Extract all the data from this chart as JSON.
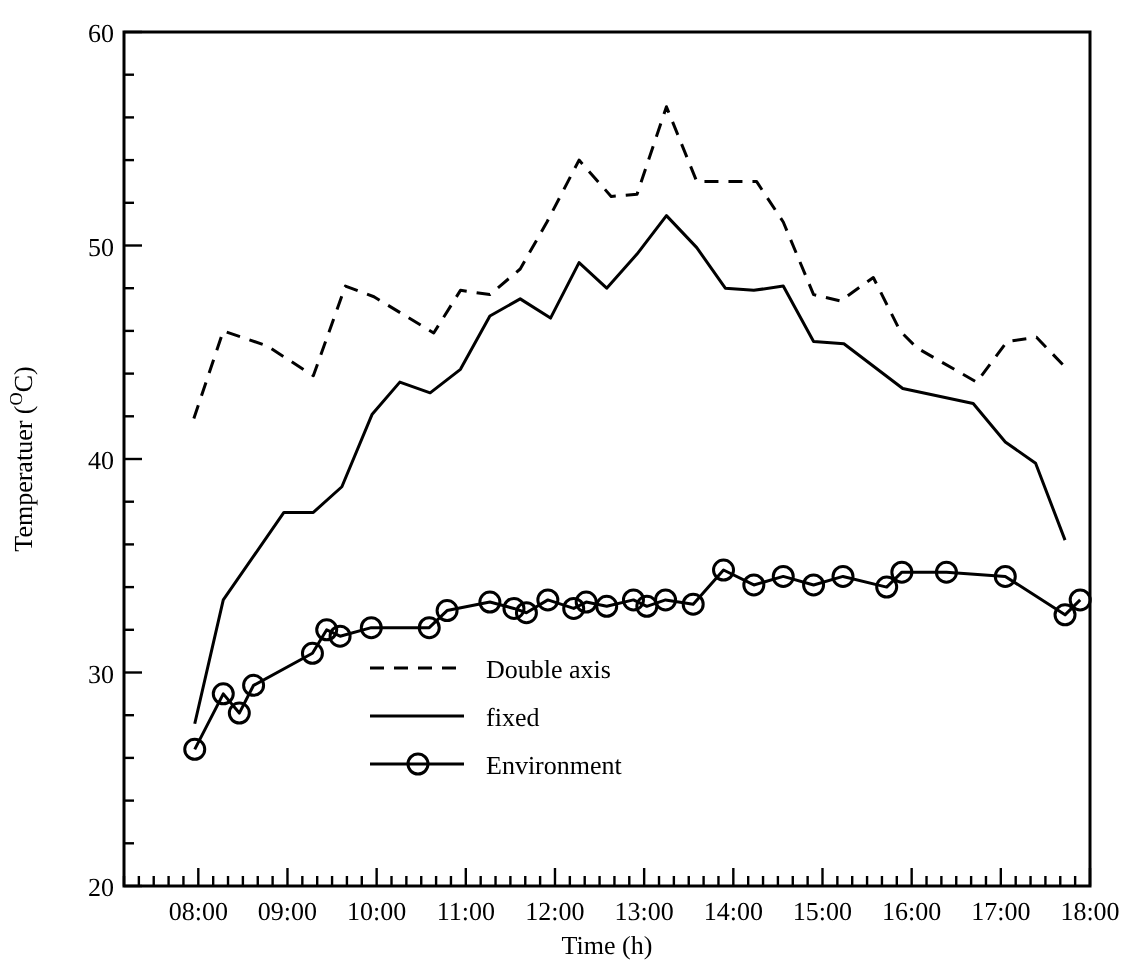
{
  "chart_data": {
    "type": "line",
    "xlabel": "Time (h)",
    "ylabel": "Temperatuer ($^{O}$C)",
    "xlim": [
      7.1667,
      18
    ],
    "ylim": [
      20,
      60
    ],
    "xticks": [
      {
        "value": 7.1667,
        "label": null
      },
      {
        "value": 7.3333,
        "label": null
      },
      {
        "value": 7.5,
        "label": null
      },
      {
        "value": 7.6667,
        "label": null
      },
      {
        "value": 7.8333,
        "label": null
      },
      {
        "value": 8,
        "label": "08:00"
      },
      {
        "value": 8.1667,
        "label": null
      },
      {
        "value": 8.3333,
        "label": null
      },
      {
        "value": 8.5,
        "label": null
      },
      {
        "value": 8.6667,
        "label": null
      },
      {
        "value": 8.8333,
        "label": null
      },
      {
        "value": 9,
        "label": "09:00"
      },
      {
        "value": 9.1667,
        "label": null
      },
      {
        "value": 9.3333,
        "label": null
      },
      {
        "value": 9.5,
        "label": null
      },
      {
        "value": 9.6667,
        "label": null
      },
      {
        "value": 9.8333,
        "label": null
      },
      {
        "value": 10,
        "label": "10:00"
      },
      {
        "value": 10.1667,
        "label": null
      },
      {
        "value": 10.3333,
        "label": null
      },
      {
        "value": 10.5,
        "label": null
      },
      {
        "value": 10.6667,
        "label": null
      },
      {
        "value": 10.8333,
        "label": null
      },
      {
        "value": 11,
        "label": "11:00"
      },
      {
        "value": 11.1667,
        "label": null
      },
      {
        "value": 11.3333,
        "label": null
      },
      {
        "value": 11.5,
        "label": null
      },
      {
        "value": 11.6667,
        "label": null
      },
      {
        "value": 11.8333,
        "label": null
      },
      {
        "value": 12,
        "label": "12:00"
      },
      {
        "value": 12.1667,
        "label": null
      },
      {
        "value": 12.3333,
        "label": null
      },
      {
        "value": 12.5,
        "label": null
      },
      {
        "value": 12.6667,
        "label": null
      },
      {
        "value": 12.8333,
        "label": null
      },
      {
        "value": 13,
        "label": "13:00"
      },
      {
        "value": 13.1667,
        "label": null
      },
      {
        "value": 13.3333,
        "label": null
      },
      {
        "value": 13.5,
        "label": null
      },
      {
        "value": 13.6667,
        "label": null
      },
      {
        "value": 13.8333,
        "label": null
      },
      {
        "value": 14,
        "label": "14:00"
      },
      {
        "value": 14.1667,
        "label": null
      },
      {
        "value": 14.3333,
        "label": null
      },
      {
        "value": 14.5,
        "label": null
      },
      {
        "value": 14.6667,
        "label": null
      },
      {
        "value": 14.8333,
        "label": null
      },
      {
        "value": 15,
        "label": "15:00"
      },
      {
        "value": 15.1667,
        "label": null
      },
      {
        "value": 15.3333,
        "label": null
      },
      {
        "value": 15.5,
        "label": null
      },
      {
        "value": 15.6667,
        "label": null
      },
      {
        "value": 15.8333,
        "label": null
      },
      {
        "value": 16,
        "label": "16:00"
      },
      {
        "value": 16.1667,
        "label": null
      },
      {
        "value": 16.3333,
        "label": null
      },
      {
        "value": 16.5,
        "label": null
      },
      {
        "value": 16.6667,
        "label": null
      },
      {
        "value": 16.8333,
        "label": null
      },
      {
        "value": 17,
        "label": "17:00"
      },
      {
        "value": 17.1667,
        "label": null
      },
      {
        "value": 17.3333,
        "label": null
      },
      {
        "value": 17.5,
        "label": null
      },
      {
        "value": 17.6667,
        "label": null
      },
      {
        "value": 17.8333,
        "label": null
      },
      {
        "value": 18,
        "label": "18:00"
      }
    ],
    "yticks": [
      20,
      {
        "value": 22,
        "label": null
      },
      {
        "value": 24,
        "label": null
      },
      {
        "value": 26,
        "label": null
      },
      {
        "value": 28,
        "label": null
      },
      30,
      {
        "value": 32,
        "label": null
      },
      {
        "value": 34,
        "label": null
      },
      {
        "value": 36,
        "label": null
      },
      {
        "value": 38,
        "label": null
      },
      40,
      {
        "value": 42,
        "label": null
      },
      {
        "value": 44,
        "label": null
      },
      {
        "value": 46,
        "label": null
      },
      {
        "value": 48,
        "label": null
      },
      50,
      {
        "value": 52,
        "label": null
      },
      {
        "value": 54,
        "label": null
      },
      {
        "value": 56,
        "label": null
      },
      {
        "value": 58,
        "label": null
      },
      60
    ],
    "grid": false,
    "legend": "bottom",
    "series": [
      {
        "name": "Double axis",
        "color": "#000000",
        "line_style": "dashed",
        "marker": "none",
        "x": [
          7.95,
          8.28,
          8.77,
          9.29,
          9.65,
          9.97,
          10.64,
          10.94,
          11.27,
          11.61,
          11.91,
          12.27,
          12.63,
          12.92,
          13.25,
          13.59,
          14.26,
          14.56,
          14.9,
          15.2,
          15.57,
          15.87,
          16.06,
          16.73,
          17.07,
          17.4,
          17.7
        ],
        "values": [
          41.9,
          46.0,
          45.3,
          43.9,
          48.1,
          47.6,
          45.9,
          47.9,
          47.7,
          48.9,
          51.1,
          54.0,
          52.3,
          52.4,
          56.5,
          53.0,
          53.0,
          51.1,
          47.7,
          47.4,
          48.5,
          46.0,
          45.2,
          43.6,
          45.5,
          45.7,
          44.4
        ]
      },
      {
        "name": "fixed",
        "color": "#000000",
        "line_style": "solid",
        "marker": "none",
        "x": [
          7.96,
          8.28,
          8.96,
          9.29,
          9.61,
          9.95,
          10.26,
          10.6,
          10.94,
          11.27,
          11.61,
          11.95,
          12.27,
          12.58,
          12.92,
          13.25,
          13.59,
          13.91,
          14.23,
          14.56,
          14.9,
          15.24,
          15.9,
          16.69,
          17.05,
          17.39,
          17.72
        ],
        "values": [
          27.6,
          33.4,
          37.5,
          37.5,
          38.7,
          42.1,
          43.6,
          43.1,
          44.2,
          46.7,
          47.5,
          46.6,
          49.2,
          48.0,
          49.6,
          51.4,
          49.9,
          48.0,
          47.9,
          48.1,
          45.5,
          45.4,
          43.3,
          42.6,
          40.8,
          39.8,
          36.2
        ]
      },
      {
        "name": "Environment",
        "color": "#000000",
        "line_style": "solid",
        "marker": "circle",
        "x": [
          7.96,
          8.28,
          8.46,
          8.62,
          9.28,
          9.44,
          9.59,
          9.94,
          10.59,
          10.79,
          11.27,
          11.54,
          11.68,
          11.92,
          12.21,
          12.35,
          12.58,
          12.88,
          13.03,
          13.24,
          13.55,
          13.89,
          14.23,
          14.56,
          14.9,
          15.23,
          15.72,
          15.89,
          16.39,
          17.05,
          17.72,
          17.89
        ],
        "values": [
          26.4,
          29.0,
          28.1,
          29.4,
          30.9,
          32.0,
          31.7,
          32.1,
          32.1,
          32.9,
          33.3,
          33.0,
          32.8,
          33.4,
          33.0,
          33.3,
          33.1,
          33.4,
          33.1,
          33.4,
          33.2,
          34.8,
          34.1,
          34.5,
          34.1,
          34.5,
          34.0,
          34.7,
          34.7,
          34.5,
          32.7,
          33.4
        ]
      }
    ]
  }
}
